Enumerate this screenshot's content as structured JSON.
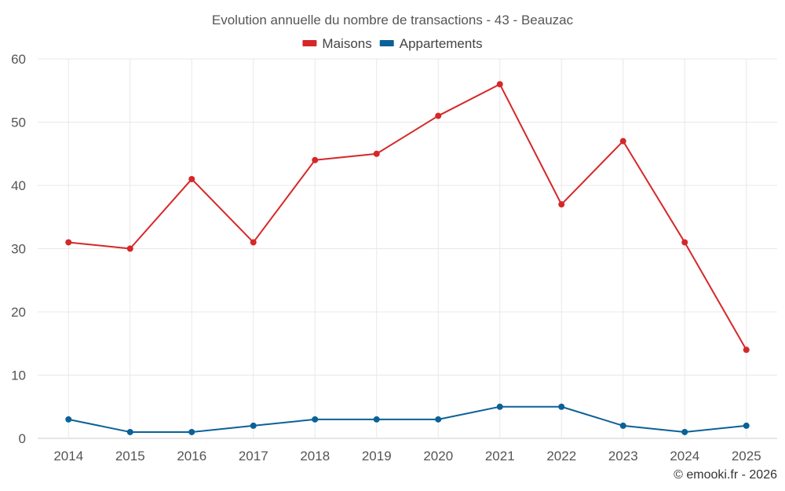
{
  "chart_data": {
    "type": "line",
    "title": "Evolution annuelle du nombre de transactions - 43 - Beauzac",
    "categories": [
      "2014",
      "2015",
      "2016",
      "2017",
      "2018",
      "2019",
      "2020",
      "2021",
      "2022",
      "2023",
      "2024",
      "2025"
    ],
    "series": [
      {
        "name": "Maisons",
        "color": "#d62728",
        "values": [
          31,
          30,
          41,
          31,
          44,
          45,
          51,
          56,
          37,
          47,
          31,
          14
        ]
      },
      {
        "name": "Appartements",
        "color": "#0b6197",
        "values": [
          3,
          1,
          1,
          2,
          3,
          3,
          3,
          5,
          5,
          2,
          1,
          2
        ]
      }
    ],
    "ylim": [
      0,
      60
    ],
    "yticks": [
      0,
      10,
      20,
      30,
      40,
      50,
      60
    ],
    "xlabel": "",
    "ylabel": "",
    "grid": true,
    "legend": "top-center"
  },
  "credit": "© emooki.fr - 2026"
}
